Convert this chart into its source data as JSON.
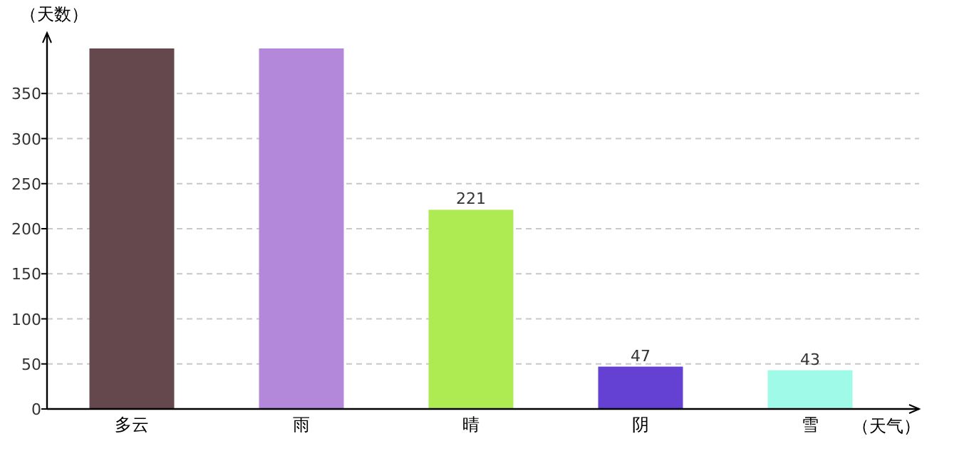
{
  "chart_data": {
    "type": "bar",
    "ylabel": "（天数）",
    "xlabel": "（天气）",
    "categories": [
      "多云",
      "雨",
      "晴",
      "阴",
      "雪"
    ],
    "values": [
      400,
      400,
      221,
      47,
      43
    ],
    "colors": [
      "#65474e",
      "#b388db",
      "#aeea52",
      "#6441d3",
      "#9ffbe8"
    ],
    "value_labels": [
      null,
      null,
      "221",
      "47",
      "43"
    ],
    "ylim": [
      0,
      400
    ],
    "yticks": [
      0,
      50,
      100,
      150,
      200,
      250,
      300,
      350
    ],
    "grid": "y"
  }
}
